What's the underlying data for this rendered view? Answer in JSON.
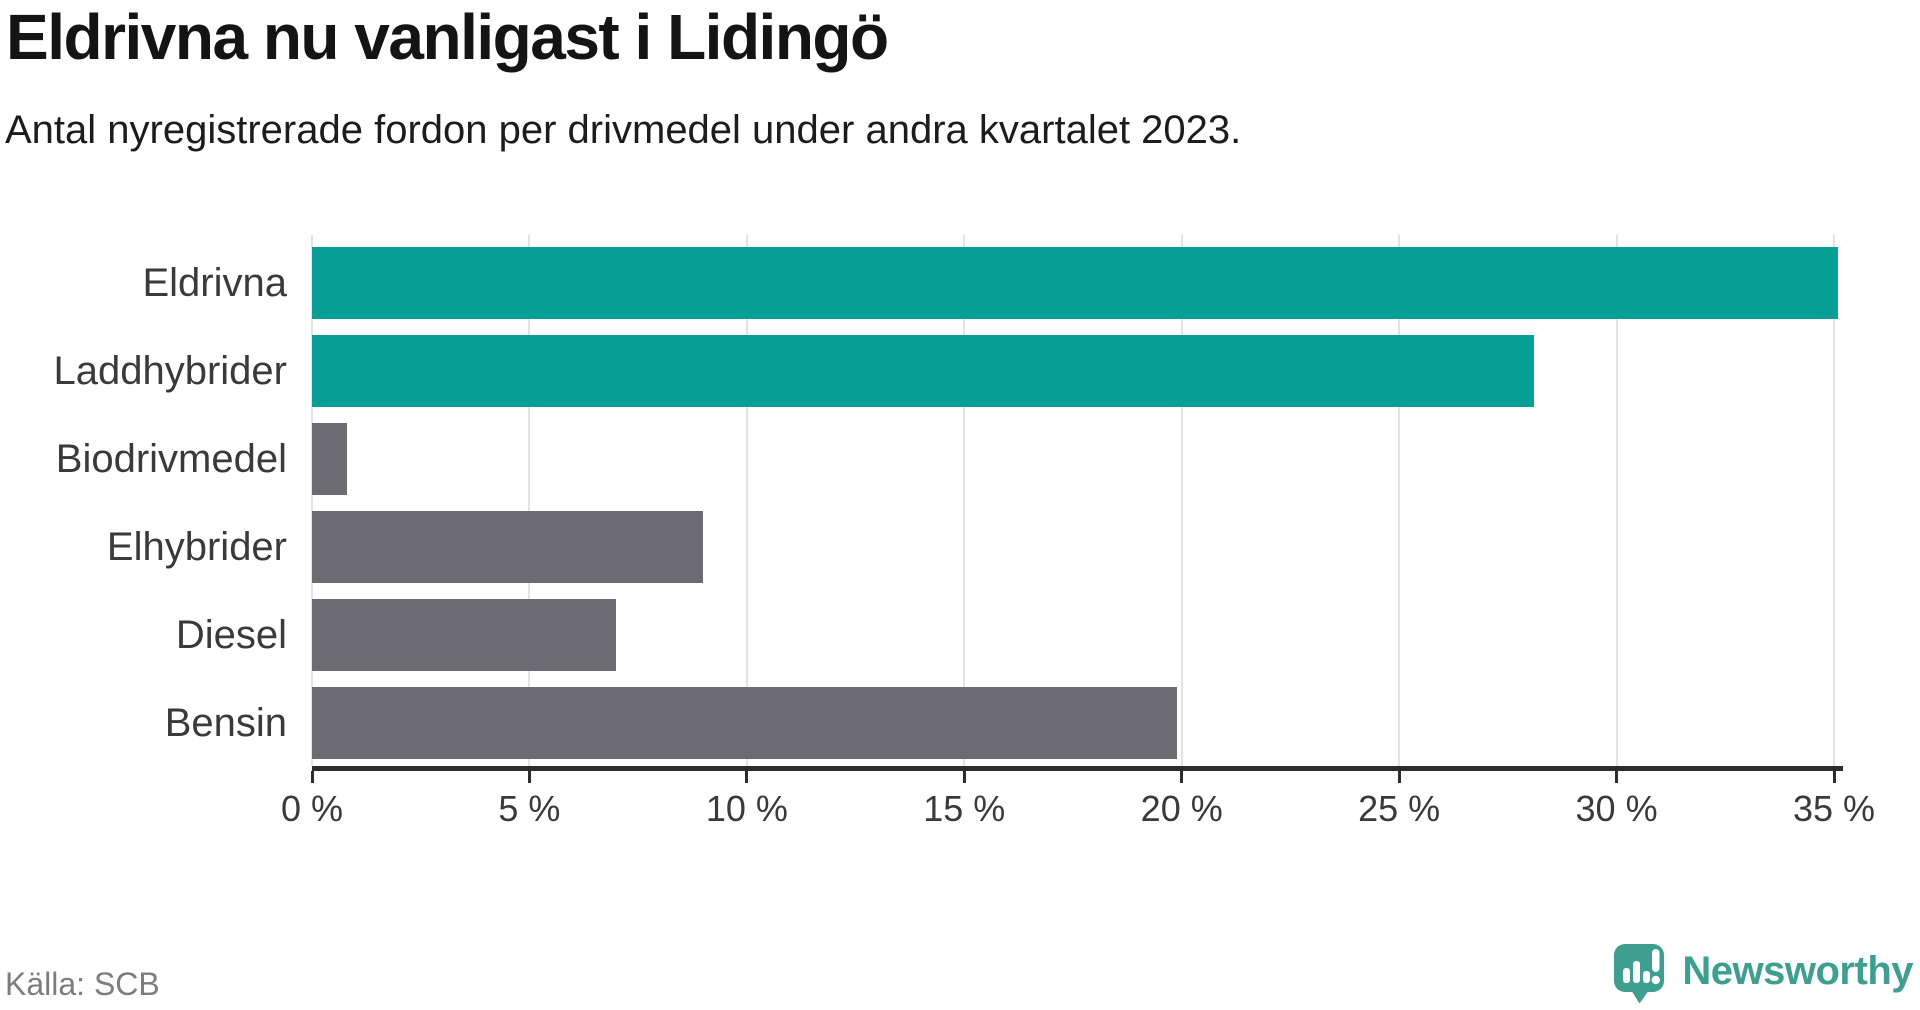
{
  "header": {
    "title": "Eldrivna nu vanligast i Lidingö",
    "subtitle": "Antal nyregistrerade fordon per drivmedel under andra kvartalet 2023."
  },
  "footer": {
    "source": "Källa: SCB",
    "brand_name": "Newsworthy",
    "brand_icon": "newsworthy-speech-bubble-bar-chart-icon"
  },
  "colors": {
    "highlight_bar": "#079e96",
    "neutral_bar": "#6b6b71",
    "axis": "#2d2d2d",
    "gridline": "#e3e3e3",
    "category_text": "#3a3a3a",
    "tick_text": "#3a3a3a",
    "source_text": "#7d7d7d",
    "brand_teal": "#3c9f8f",
    "title_text": "#141414"
  },
  "chart_data": {
    "type": "bar",
    "orientation": "horizontal",
    "title": "Eldrivna nu vanligast i Lidingö",
    "subtitle": "Antal nyregistrerade fordon per drivmedel under andra kvartalet 2023.",
    "categories": [
      "Eldrivna",
      "Laddhybrider",
      "Biodrivmedel",
      "Elhybrider",
      "Diesel",
      "Bensin"
    ],
    "values": [
      35.1,
      28.1,
      0.8,
      9.0,
      7.0,
      19.9
    ],
    "unit": "%",
    "bar_colors": [
      "#079e96",
      "#079e96",
      "#6b6b71",
      "#6b6b71",
      "#6b6b71",
      "#6b6b71"
    ],
    "xlim": [
      0,
      35
    ],
    "x_tick_step": 5,
    "x_tick_labels": [
      "0 %",
      "5 %",
      "10 %",
      "15 %",
      "20 %",
      "25 %",
      "30 %",
      "35 %"
    ],
    "grid": "vertical-only",
    "legend": "none",
    "source": "Källa: SCB"
  }
}
